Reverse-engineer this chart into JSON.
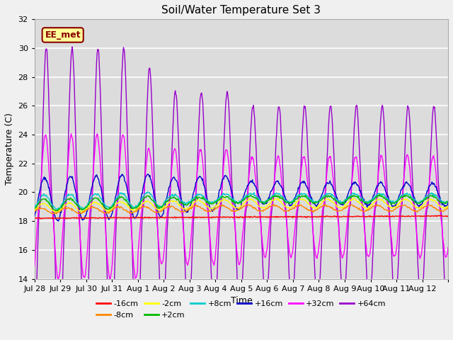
{
  "title": "Soil/Water Temperature Set 3",
  "xlabel": "Time",
  "ylabel": "Temperature (C)",
  "ylim": [
    14,
    32
  ],
  "yticks": [
    14,
    16,
    18,
    20,
    22,
    24,
    26,
    28,
    30,
    32
  ],
  "fig_bg": "#f0f0f0",
  "plot_bg": "#dcdcdc",
  "annotation_text": "EE_met",
  "annotation_bg": "#ffff99",
  "annotation_border": "#8B0000",
  "series_order": [
    "+64cm",
    "+32cm",
    "+16cm",
    "+8cm",
    "+2cm",
    "-2cm",
    "-8cm",
    "-16cm"
  ],
  "series": {
    "-16cm": {
      "color": "#ff0000"
    },
    "-8cm": {
      "color": "#ff8800"
    },
    "-2cm": {
      "color": "#ffff00"
    },
    "+2cm": {
      "color": "#00bb00"
    },
    "+8cm": {
      "color": "#00cccc"
    },
    "+16cm": {
      "color": "#0000cc"
    },
    "+32cm": {
      "color": "#ff00ff"
    },
    "+64cm": {
      "color": "#9900cc"
    }
  },
  "n_days": 16,
  "samples_per_day": 48,
  "xtick_labels": [
    "Jul 28",
    "Jul 29",
    "Jul 30",
    "Jul 31",
    "Aug 1",
    "Aug 2",
    "Aug 3",
    "Aug 4",
    "Aug 5",
    "Aug 6",
    "Aug 7",
    "Aug 8",
    "Aug 9",
    "Aug 10",
    "Aug 11",
    "Aug 12"
  ],
  "legend_entries": [
    "-16cm",
    "-8cm",
    "-2cm",
    "+2cm",
    "+8cm",
    "+16cm",
    "+32cm",
    "+64cm"
  ],
  "legend_colors": [
    "#ff0000",
    "#ff8800",
    "#ffff00",
    "#00bb00",
    "#00cccc",
    "#0000cc",
    "#ff00ff",
    "#9900cc"
  ]
}
